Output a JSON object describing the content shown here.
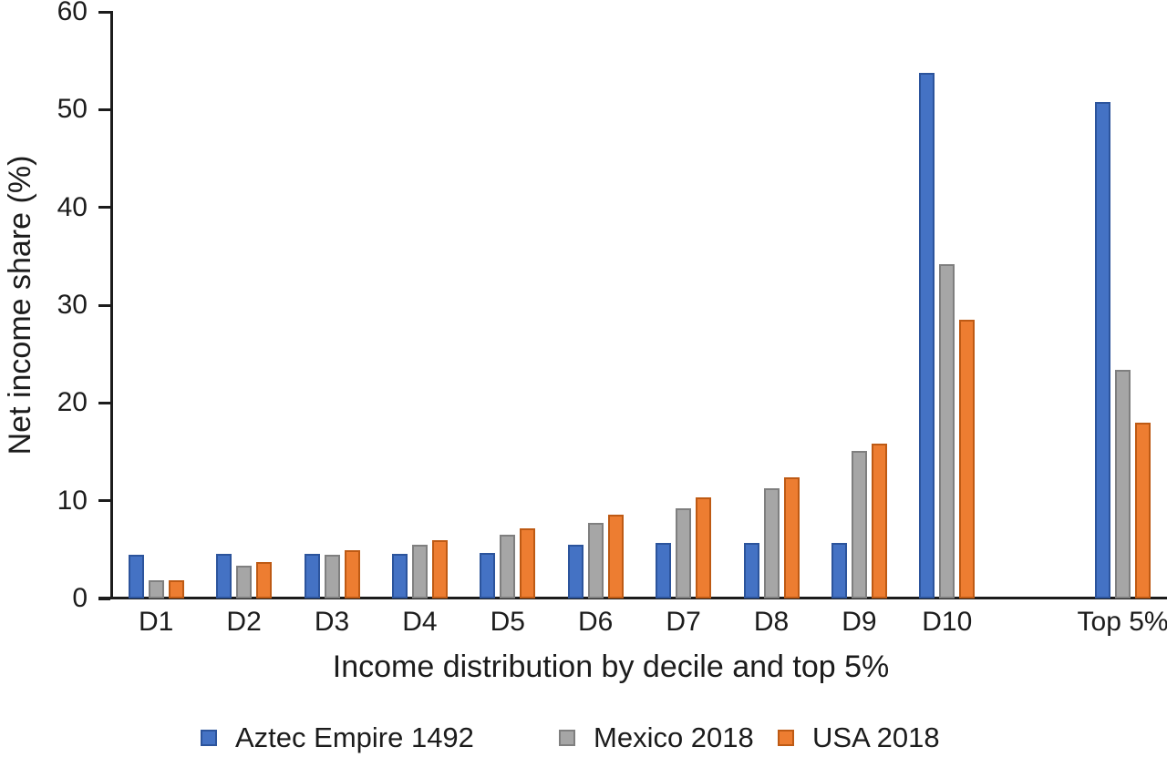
{
  "chart_data": {
    "type": "bar",
    "title": "",
    "xlabel": "Income distribution by decile and top 5%",
    "ylabel": "Net income share (%)",
    "ylim": [
      0,
      60
    ],
    "yticks": [
      0,
      10,
      20,
      30,
      40,
      50,
      60
    ],
    "grid": false,
    "legend_position": "bottom",
    "categories": [
      "D1",
      "D2",
      "D3",
      "D4",
      "D5",
      "D6",
      "D7",
      "D8",
      "D9",
      "D10",
      "Top 5%"
    ],
    "layout": {
      "gap_slot_before_last_category": true,
      "legend_item_x": [
        220,
        613,
        853
      ]
    },
    "colors": {
      "axis": "#1c1c1c",
      "background": "#ffffff"
    },
    "series": [
      {
        "name": "Aztec Empire 1492",
        "color": "#4472C4",
        "border_color": "#2C549C",
        "values": [
          4.5,
          4.6,
          4.6,
          4.6,
          4.7,
          5.5,
          5.7,
          5.7,
          5.7,
          53.8,
          50.8
        ]
      },
      {
        "name": "Mexico 2018",
        "color": "#A6A6A6",
        "border_color": "#7F7F7F",
        "values": [
          1.9,
          3.4,
          4.5,
          5.5,
          6.5,
          7.7,
          9.2,
          11.3,
          15.1,
          34.2,
          23.4
        ]
      },
      {
        "name": "USA 2018",
        "color": "#ED7D31",
        "border_color": "#BE5A14",
        "values": [
          1.9,
          3.7,
          4.9,
          6.0,
          7.2,
          8.6,
          10.3,
          12.4,
          15.8,
          28.5,
          18.0
        ]
      }
    ]
  }
}
